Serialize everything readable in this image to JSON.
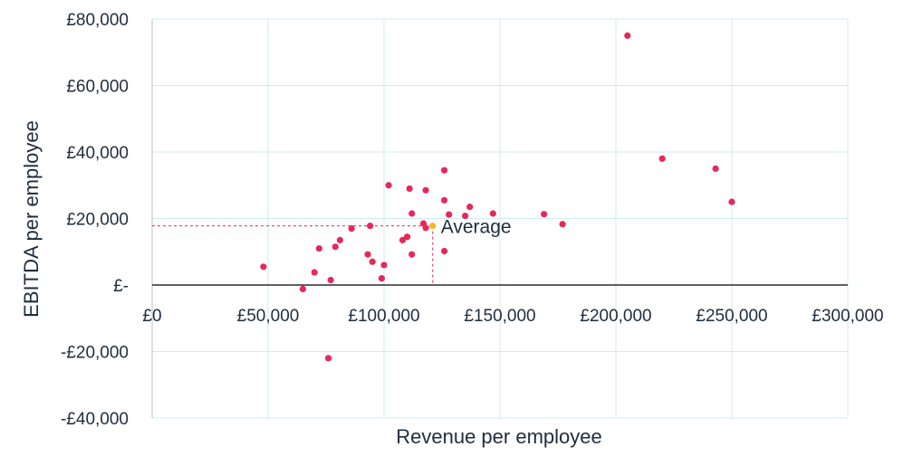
{
  "chart_data": {
    "type": "scatter",
    "xlabel": "Revenue per employee",
    "ylabel": "EBITDA per employee",
    "xlim": [
      0,
      300000
    ],
    "ylim": [
      -40000,
      80000
    ],
    "x_ticks": [
      0,
      50000,
      100000,
      150000,
      200000,
      250000,
      300000
    ],
    "x_tick_labels": [
      "£0",
      "£50,000",
      "£100,000",
      "£150,000",
      "£200,000",
      "£250,000",
      "£300,000"
    ],
    "y_ticks": [
      80000,
      60000,
      40000,
      20000,
      0,
      -20000,
      -40000
    ],
    "y_tick_labels": [
      "£80,000",
      "£60,000",
      "£40,000",
      "£20,000",
      "£-",
      "-£20,000",
      "-£40,000"
    ],
    "grid": true,
    "colors": {
      "points": "#e8275a",
      "average": "#f5b82e",
      "grid": "#cdeeee",
      "axis": "#000000",
      "text": "#1f2d3d"
    },
    "points": [
      {
        "x": 48000,
        "y": 5500
      },
      {
        "x": 65000,
        "y": -1200
      },
      {
        "x": 70000,
        "y": 3800
      },
      {
        "x": 72000,
        "y": 11000
      },
      {
        "x": 77000,
        "y": 1500
      },
      {
        "x": 76000,
        "y": -22000
      },
      {
        "x": 79000,
        "y": 11500
      },
      {
        "x": 81000,
        "y": 13500
      },
      {
        "x": 86000,
        "y": 17000
      },
      {
        "x": 93000,
        "y": 9200
      },
      {
        "x": 94000,
        "y": 17800
      },
      {
        "x": 95000,
        "y": 7000
      },
      {
        "x": 99000,
        "y": 2000
      },
      {
        "x": 100000,
        "y": 6000
      },
      {
        "x": 102000,
        "y": 30000
      },
      {
        "x": 108000,
        "y": 13500
      },
      {
        "x": 110000,
        "y": 14500
      },
      {
        "x": 111000,
        "y": 29000
      },
      {
        "x": 112000,
        "y": 21500
      },
      {
        "x": 112000,
        "y": 9200
      },
      {
        "x": 117000,
        "y": 18500
      },
      {
        "x": 118000,
        "y": 17200
      },
      {
        "x": 118000,
        "y": 28500
      },
      {
        "x": 126000,
        "y": 34500
      },
      {
        "x": 126000,
        "y": 25500
      },
      {
        "x": 126000,
        "y": 10200
      },
      {
        "x": 128000,
        "y": 21200
      },
      {
        "x": 135000,
        "y": 20800
      },
      {
        "x": 137000,
        "y": 23500
      },
      {
        "x": 147000,
        "y": 21500
      },
      {
        "x": 169000,
        "y": 21300
      },
      {
        "x": 177000,
        "y": 18300
      },
      {
        "x": 205000,
        "y": 75000
      },
      {
        "x": 220000,
        "y": 38000
      },
      {
        "x": 243000,
        "y": 35000
      },
      {
        "x": 250000,
        "y": 25000
      }
    ],
    "average": {
      "label": "Average",
      "x": 121000,
      "y": 17800
    }
  }
}
